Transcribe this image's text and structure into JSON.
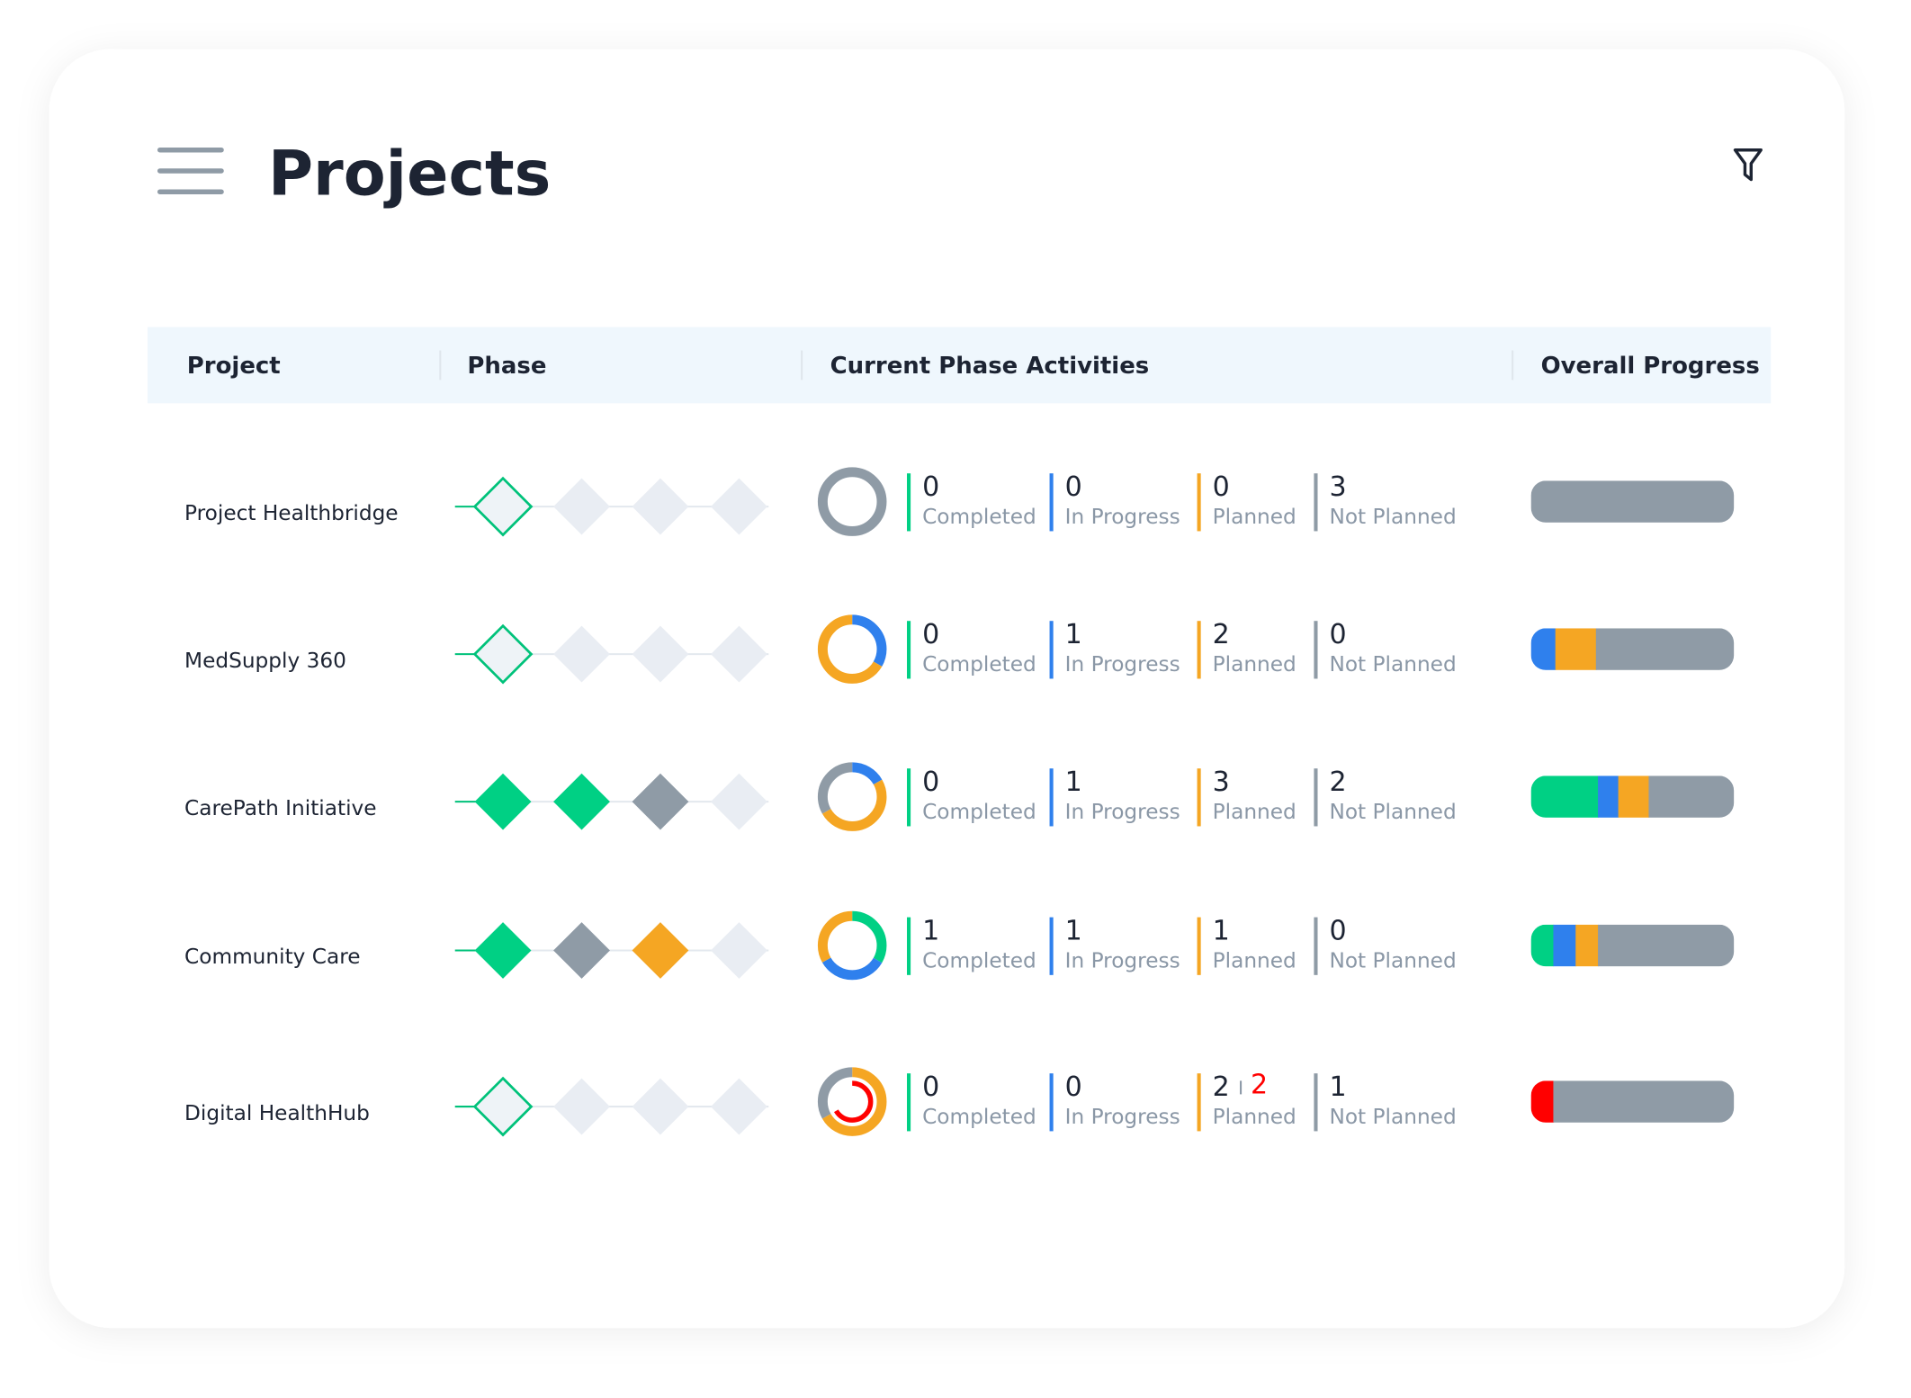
{
  "header": {
    "title": "Projects"
  },
  "table": {
    "columns": [
      "Project",
      "Phase",
      "Current Phase Activities",
      "Overall Progress"
    ],
    "activity_labels": [
      "Completed",
      "In Progress",
      "Planned",
      "Not Planned"
    ],
    "activity_colors": [
      "#00d084",
      "#2f80ed",
      "#f5a623",
      "#8f9ba6"
    ],
    "overdue_color": "#ff0000",
    "rows": [
      {
        "project": "Project Healthbridge",
        "phases": [
          {
            "fill": "#eef3f7",
            "stroke": "#00c27a"
          },
          {
            "fill": "#e9edf3"
          },
          {
            "fill": "#e9edf3"
          },
          {
            "fill": "#e9edf3"
          }
        ],
        "activities": [
          0,
          0,
          0,
          3
        ],
        "progress": [
          {
            "color": "#8f9ba6",
            "value": 100
          }
        ]
      },
      {
        "project": "MedSupply 360",
        "phases": [
          {
            "fill": "#eef3f7",
            "stroke": "#00c27a"
          },
          {
            "fill": "#e9edf3"
          },
          {
            "fill": "#e9edf3"
          },
          {
            "fill": "#e9edf3"
          }
        ],
        "activities": [
          0,
          1,
          2,
          0
        ],
        "progress": [
          {
            "color": "#2f80ed",
            "value": 12
          },
          {
            "color": "#f5a623",
            "value": 20
          },
          {
            "color": "#8f9ba6",
            "value": 68
          }
        ]
      },
      {
        "project": "CarePath Initiative",
        "phases": [
          {
            "fill": "#00d084"
          },
          {
            "fill": "#00d084"
          },
          {
            "fill": "#8f9ba6"
          },
          {
            "fill": "#e9edf3"
          }
        ],
        "activities": [
          0,
          1,
          3,
          2
        ],
        "progress": [
          {
            "color": "#00d084",
            "value": 33
          },
          {
            "color": "#2f80ed",
            "value": 10
          },
          {
            "color": "#f5a623",
            "value": 15
          },
          {
            "color": "#8f9ba6",
            "value": 42
          }
        ]
      },
      {
        "project": "Community Care",
        "phases": [
          {
            "fill": "#00d084"
          },
          {
            "fill": "#8f9ba6"
          },
          {
            "fill": "#f5a623"
          },
          {
            "fill": "#e9edf3"
          }
        ],
        "activities": [
          1,
          1,
          1,
          0
        ],
        "progress": [
          {
            "color": "#00d084",
            "value": 11
          },
          {
            "color": "#2f80ed",
            "value": 11
          },
          {
            "color": "#f5a623",
            "value": 11
          },
          {
            "color": "#8f9ba6",
            "value": 67
          }
        ]
      },
      {
        "project": "Digital HealthHub",
        "phases": [
          {
            "fill": "#eef3f7",
            "stroke": "#00c27a"
          },
          {
            "fill": "#e9edf3"
          },
          {
            "fill": "#e9edf3"
          },
          {
            "fill": "#e9edf3"
          }
        ],
        "activities": [
          0,
          0,
          2,
          1
        ],
        "overdue": 2,
        "progress": [
          {
            "color": "#ff0000",
            "value": 11
          },
          {
            "color": "#8f9ba6",
            "value": 89
          }
        ]
      }
    ]
  }
}
